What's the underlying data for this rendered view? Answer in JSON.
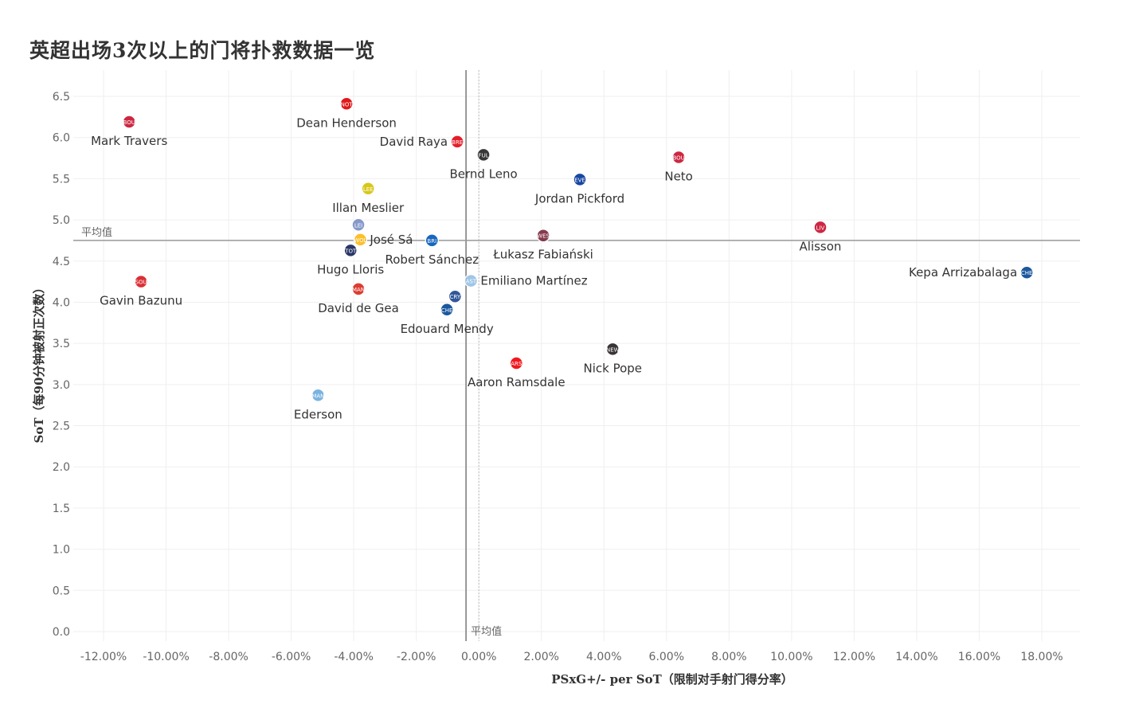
{
  "chart_data": {
    "type": "scatter",
    "title": "英超出场3次以上的门将扑救数据一览",
    "xlabel": "PSxG+/- per SoT（限制对手射门得分率）",
    "ylabel": "SoT（每90分钟被射正次数）",
    "xlim": [
      -12,
      18
    ],
    "ylim": [
      0,
      6.5
    ],
    "x_unit": "%",
    "x_ticks": [
      "-12.00%",
      "-10.00%",
      "-8.00%",
      "-6.00%",
      "-4.00%",
      "-2.00%",
      "0.00%",
      "2.00%",
      "4.00%",
      "6.00%",
      "8.00%",
      "10.00%",
      "12.00%",
      "14.00%",
      "16.00%",
      "18.00%"
    ],
    "y_ticks": [
      "0.0",
      "0.5",
      "1.0",
      "1.5",
      "2.0",
      "2.5",
      "3.0",
      "3.5",
      "4.0",
      "4.5",
      "5.0",
      "5.5",
      "6.0",
      "6.5"
    ],
    "grid": true,
    "reference_lines": {
      "x_average": -0.41,
      "y_average": 4.75,
      "label": "平均值"
    },
    "points": [
      {
        "name": "Mark Travers",
        "team": "Bournemouth",
        "color": "#c8102e",
        "x": -11.18,
        "y": 6.19,
        "label_pos": "below"
      },
      {
        "name": "Dean Henderson",
        "team": "Nottingham Forest",
        "color": "#dd0000",
        "x": -4.23,
        "y": 6.41,
        "label_pos": "below"
      },
      {
        "name": "David Raya",
        "team": "Brentford",
        "color": "#e30613",
        "x": -0.69,
        "y": 5.95,
        "label_pos": "left"
      },
      {
        "name": "Bernd Leno",
        "team": "Fulham",
        "color": "#222222",
        "x": 0.15,
        "y": 5.79,
        "label_pos": "below"
      },
      {
        "name": "Neto",
        "team": "Bournemouth",
        "color": "#c8102e",
        "x": 6.39,
        "y": 5.76,
        "label_pos": "below"
      },
      {
        "name": "Jordan Pickford",
        "team": "Everton",
        "color": "#003399",
        "x": 3.23,
        "y": 5.49,
        "label_pos": "below"
      },
      {
        "name": "Illan Meslier",
        "team": "Leeds",
        "color": "#d4c200",
        "x": -3.54,
        "y": 5.38,
        "label_pos": "below"
      },
      {
        "name": "",
        "team": "Leicester",
        "color": "#7a8fc4",
        "x": -3.85,
        "y": 4.94,
        "label_pos": "below"
      },
      {
        "name": "José Sá",
        "team": "Wolves",
        "color": "#fdb913",
        "x": -3.79,
        "y": 4.76,
        "label_pos": "right"
      },
      {
        "name": "Robert Sánchez",
        "team": "Brighton",
        "color": "#0057b8",
        "x": -1.5,
        "y": 4.75,
        "label_pos": "below"
      },
      {
        "name": "Łukasz Fabiański",
        "team": "West Ham",
        "color": "#7a263a",
        "x": 2.06,
        "y": 4.81,
        "label_pos": "below"
      },
      {
        "name": "Alisson",
        "team": "Liverpool",
        "color": "#c8102e",
        "x": 10.92,
        "y": 4.91,
        "label_pos": "below"
      },
      {
        "name": "Kepa Arrizabalaga",
        "team": "Chelsea",
        "color": "#034694",
        "x": 17.52,
        "y": 4.36,
        "label_pos": "left"
      },
      {
        "name": "Hugo Lloris",
        "team": "Tottenham",
        "color": "#132257",
        "x": -4.1,
        "y": 4.63,
        "label_pos": "below"
      },
      {
        "name": "Gavin Bazunu",
        "team": "Southampton",
        "color": "#d71920",
        "x": -10.8,
        "y": 4.25,
        "label_pos": "below"
      },
      {
        "name": "Emiliano Martínez",
        "team": "Aston Villa",
        "color": "#95bfe5",
        "x": -0.25,
        "y": 4.26,
        "label_pos": "right"
      },
      {
        "name": "David de Gea",
        "team": "Man United",
        "color": "#da291c",
        "x": -3.85,
        "y": 4.16,
        "label_pos": "below"
      },
      {
        "name": "",
        "team": "Crystal Palace",
        "color": "#1b458f",
        "x": -0.76,
        "y": 4.07,
        "label_pos": "below"
      },
      {
        "name": "Edouard Mendy",
        "team": "Chelsea",
        "color": "#034694",
        "x": -1.02,
        "y": 3.91,
        "label_pos": "below"
      },
      {
        "name": "Nick Pope",
        "team": "Newcastle",
        "color": "#241f20",
        "x": 4.28,
        "y": 3.43,
        "label_pos": "below"
      },
      {
        "name": "Aaron Ramsdale",
        "team": "Arsenal",
        "color": "#ef0107",
        "x": 1.2,
        "y": 3.26,
        "label_pos": "below"
      },
      {
        "name": "Ederson",
        "team": "Man City",
        "color": "#6cabdd",
        "x": -5.14,
        "y": 2.87,
        "label_pos": "below"
      }
    ]
  }
}
